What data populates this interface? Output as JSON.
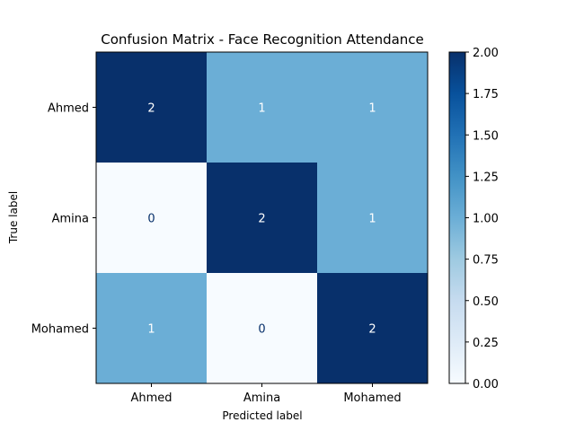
{
  "chart_data": {
    "type": "heatmap",
    "title": "Confusion Matrix - Face Recognition Attendance",
    "xlabel": "Predicted label",
    "ylabel": "True label",
    "x_categories": [
      "Ahmed",
      "Amina",
      "Mohamed"
    ],
    "y_categories": [
      "Ahmed",
      "Amina",
      "Mohamed"
    ],
    "values": [
      [
        2,
        1,
        1
      ],
      [
        0,
        2,
        1
      ],
      [
        1,
        0,
        2
      ]
    ],
    "colormap": "Blues",
    "colorbar": {
      "range": [
        0,
        2
      ],
      "ticks": [
        "0.00",
        "0.25",
        "0.50",
        "0.75",
        "1.00",
        "1.25",
        "1.50",
        "1.75",
        "2.00"
      ]
    },
    "colors": {
      "low": "#f7fbff",
      "mid": "#6baed6",
      "high": "#08306b",
      "text_on_dark": "#ffffff",
      "text_on_light": "#08306b"
    }
  }
}
